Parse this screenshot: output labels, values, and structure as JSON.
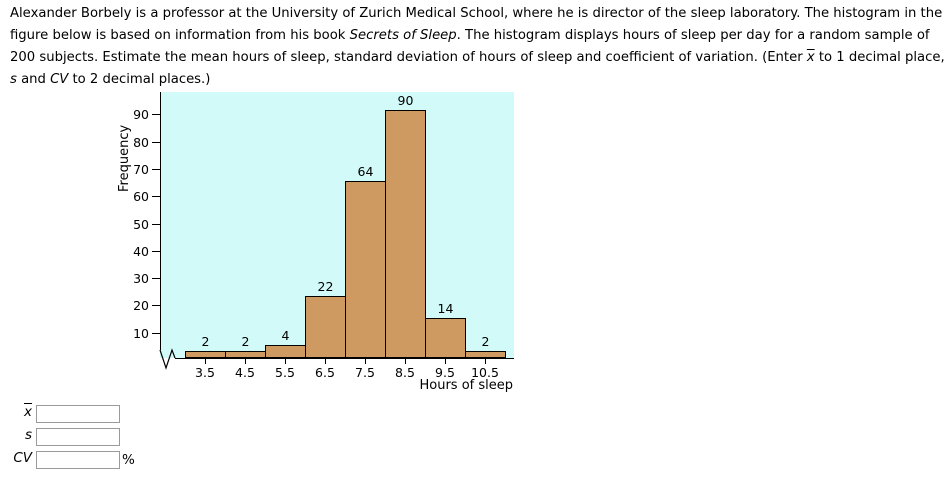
{
  "intro": {
    "line1": "Alexander Borbely is a professor at the University of Zurich Medical School, where he is director of the sleep laboratory. The histogram in the",
    "line2_pre": "figure below is based on information from his book ",
    "line2_italic": "Secrets of Sleep",
    "line2_post": ". The histogram displays hours of sleep per day for a random sample of",
    "line3_pre": "200 subjects. Estimate the mean hours of sleep, standard deviation of hours of sleep and coefficient of variation. (Enter ",
    "line3_xbar": "x",
    "line3_post": " to 1 decimal place,",
    "line4_s": "s",
    "line4_mid": " and ",
    "line4_cv": "CV",
    "line4_post": " to 2 decimal places.)"
  },
  "chart_data": {
    "type": "bar",
    "title": "",
    "xlabel": "Hours of sleep",
    "ylabel": "Frequency",
    "categories": [
      "3.5",
      "4.5",
      "5.5",
      "6.5",
      "7.5",
      "8.5",
      "9.5",
      "10.5"
    ],
    "values": [
      2,
      2,
      4,
      22,
      64,
      90,
      14,
      2
    ],
    "y_ticks": [
      10,
      20,
      30,
      40,
      50,
      60,
      70,
      80,
      90
    ],
    "ylim": [
      0,
      95
    ],
    "grid": false,
    "legend": false,
    "x_axis_break": true,
    "bar_color": "#CF9A62",
    "bar_border_color": "#000000",
    "plot_bg_color": "#D2FAF9"
  },
  "answers": {
    "xbar_label": "x",
    "s_label": "s",
    "cv_label": "CV",
    "percent_label": "%",
    "xbar_value": "",
    "s_value": "",
    "cv_value": ""
  }
}
